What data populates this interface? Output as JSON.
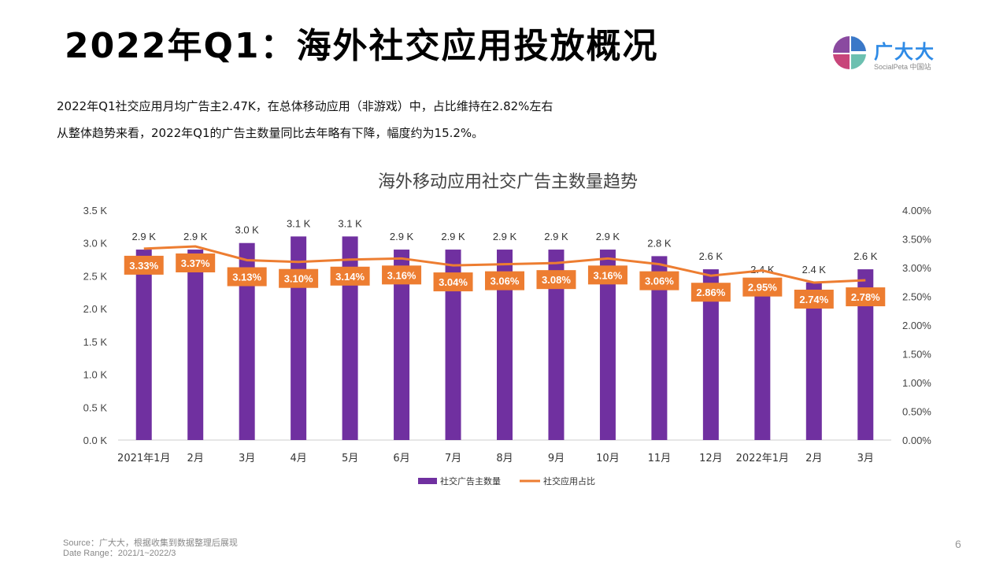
{
  "title": "2022年Q1：海外社交应用投放概况",
  "logo": {
    "name": "广大大",
    "sub": "SocialPeta 中国站"
  },
  "description": [
    "2022年Q1社交应用月均广告主2.47K，在总体移动应用（非游戏）中，占比维持在2.82%左右",
    "从整体趋势来看，2022年Q1的广告主数量同比去年略有下降，幅度约为15.2%。"
  ],
  "chart_data": {
    "type": "bar+line",
    "title": "海外移动应用社交广告主数量趋势",
    "categories": [
      "2021年1月",
      "2月",
      "3月",
      "4月",
      "5月",
      "6月",
      "7月",
      "8月",
      "9月",
      "10月",
      "11月",
      "12月",
      "2022年1月",
      "2月",
      "3月"
    ],
    "y_left": {
      "ticks": [
        "0.0 K",
        "0.5 K",
        "1.0 K",
        "1.5 K",
        "2.0 K",
        "2.5 K",
        "3.0 K",
        "3.5 K"
      ],
      "range": [
        0,
        3.5
      ]
    },
    "y_right": {
      "ticks": [
        "0.00%",
        "0.50%",
        "1.00%",
        "1.50%",
        "2.00%",
        "2.50%",
        "3.00%",
        "3.50%",
        "4.00%"
      ],
      "range": [
        0,
        4
      ]
    },
    "series": [
      {
        "name": "社交广告主数量",
        "type": "bar",
        "color": "#7030a0",
        "values": [
          2.9,
          2.9,
          3.0,
          3.1,
          3.1,
          2.9,
          2.9,
          2.9,
          2.9,
          2.9,
          2.8,
          2.6,
          2.4,
          2.4,
          2.6
        ],
        "labels": [
          "2.9 K",
          "2.9 K",
          "3.0 K",
          "3.1 K",
          "3.1 K",
          "2.9 K",
          "2.9 K",
          "2.9 K",
          "2.9 K",
          "2.9 K",
          "2.8 K",
          "2.6 K",
          "2.4 K",
          "2.4 K",
          "2.6 K"
        ]
      },
      {
        "name": "社交应用占比",
        "type": "line",
        "axis": "right",
        "color": "#ed7d31",
        "values": [
          3.33,
          3.37,
          3.13,
          3.1,
          3.14,
          3.16,
          3.04,
          3.06,
          3.08,
          3.16,
          3.06,
          2.86,
          2.95,
          2.74,
          2.78
        ],
        "labels": [
          "3.33%",
          "3.37%",
          "3.13%",
          "3.10%",
          "3.14%",
          "3.16%",
          "3.04%",
          "3.06%",
          "3.08%",
          "3.16%",
          "3.06%",
          "2.86%",
          "2.95%",
          "2.74%",
          "2.78%"
        ]
      }
    ],
    "legend": "bottom"
  },
  "footer": {
    "source": "Source：广大大，根据收集到数据整理后展现",
    "date_range": "Date Range：2021/1~2022/3"
  },
  "page_number": "6"
}
